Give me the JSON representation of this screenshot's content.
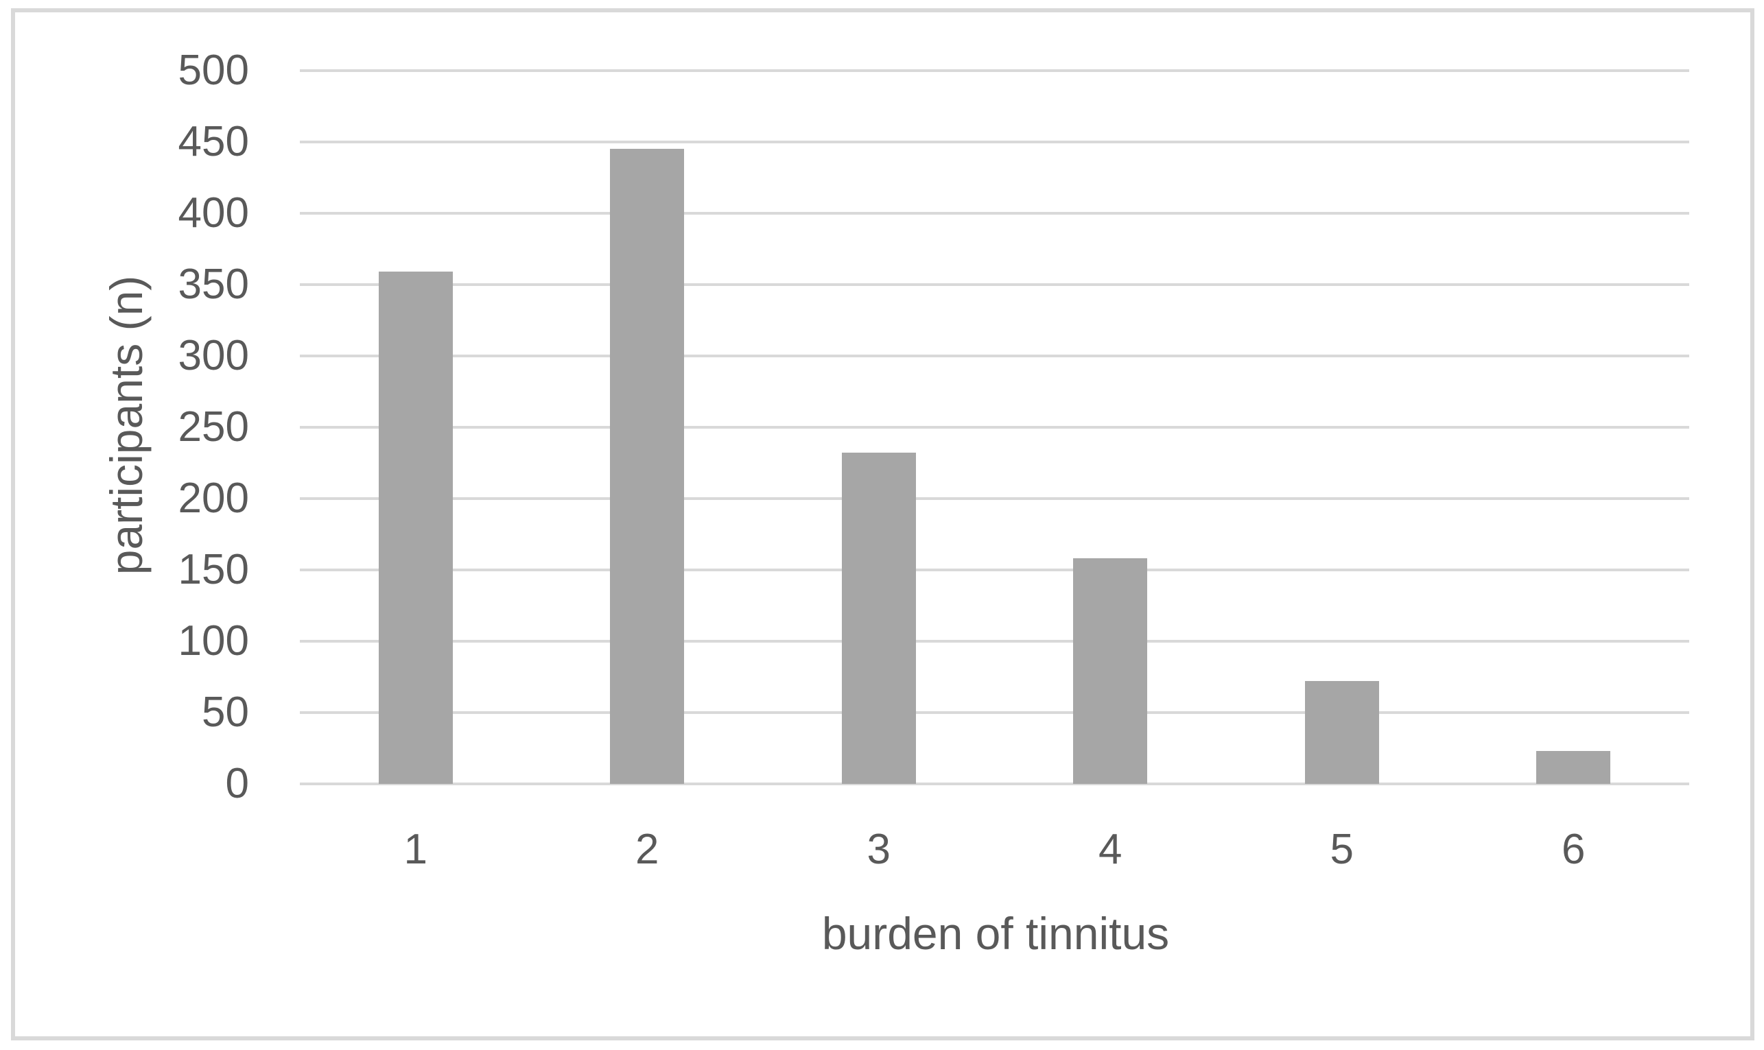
{
  "colors": {
    "bar_fill": "#a6a6a6",
    "gridline": "#d9d9d9",
    "frame_border": "#d9d9d9",
    "text": "#595959",
    "background": "#ffffff"
  },
  "chart_data": {
    "type": "bar",
    "title": "",
    "xlabel": "burden of tinnitus",
    "ylabel": "participants (n)",
    "categories": [
      "1",
      "2",
      "3",
      "4",
      "5",
      "6"
    ],
    "values": [
      359,
      445,
      232,
      158,
      72,
      23
    ],
    "ylim": [
      0,
      500
    ],
    "ytick_step": 50,
    "ytick_labels": [
      "0",
      "50",
      "100",
      "150",
      "200",
      "250",
      "300",
      "350",
      "400",
      "450",
      "500"
    ],
    "grid": "horizontal",
    "legend": "none",
    "bar_color": "#a6a6a6"
  }
}
